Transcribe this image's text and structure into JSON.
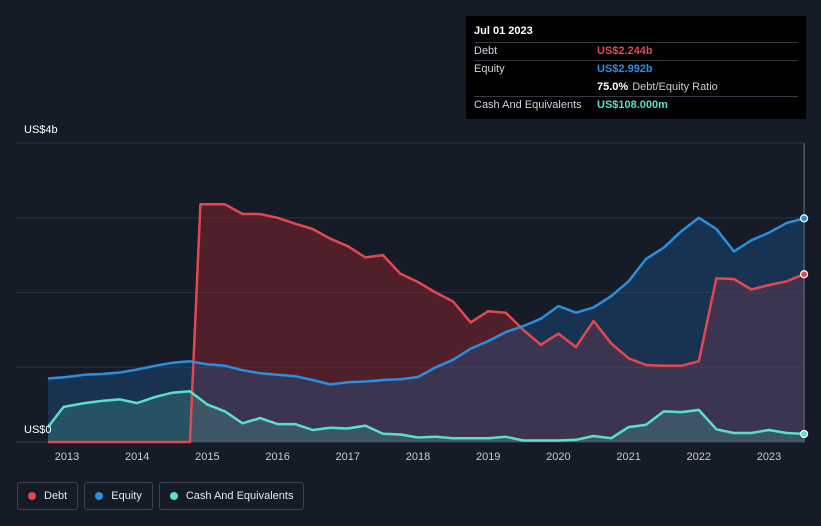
{
  "tooltip": {
    "date": "Jul 01 2023",
    "debt_label": "Debt",
    "debt_value": "US$2.244b",
    "equity_label": "Equity",
    "equity_value": "US$2.992b",
    "ratio_value": "75.0%",
    "ratio_label": "Debt/Equity Ratio",
    "cash_label": "Cash And Equivalents",
    "cash_value": "US$108.000m"
  },
  "legend": [
    {
      "label": "Debt",
      "color": "#e5474f"
    },
    {
      "label": "Equity",
      "color": "#2b8fe0"
    },
    {
      "label": "Cash And Equivalents",
      "color": "#58e0cb"
    }
  ],
  "colors": {
    "debt": "#e5474f",
    "equity": "#2b8fe0",
    "cash": "#58e0cb",
    "background": "#151b27"
  },
  "chart_data": {
    "type": "area",
    "y_top_label": "US$4b",
    "y_bottom_label": "US$0",
    "ylim": [
      0,
      4
    ],
    "y_unit": "US$ billions",
    "xlim": [
      2012.73,
      2023.5
    ],
    "x_ticks": [
      2013,
      2014,
      2015,
      2016,
      2017,
      2018,
      2019,
      2020,
      2021,
      2022,
      2023
    ],
    "series": [
      {
        "name": "Debt",
        "x": [
          2012.73,
          2014.75,
          2014.9,
          2015.25,
          2015.5,
          2015.75,
          2016.0,
          2016.25,
          2016.5,
          2016.75,
          2017.0,
          2017.25,
          2017.5,
          2017.75,
          2018.0,
          2018.25,
          2018.5,
          2018.75,
          2019.0,
          2019.25,
          2019.5,
          2019.75,
          2020.0,
          2020.25,
          2020.5,
          2020.75,
          2021.0,
          2021.25,
          2021.5,
          2021.75,
          2022.0,
          2022.25,
          2022.5,
          2022.75,
          2023.0,
          2023.25,
          2023.5
        ],
        "values": [
          0.0,
          0.0,
          3.18,
          3.18,
          3.05,
          3.05,
          3.0,
          2.92,
          2.85,
          2.72,
          2.62,
          2.47,
          2.5,
          2.25,
          2.14,
          2.0,
          1.88,
          1.6,
          1.75,
          1.73,
          1.5,
          1.3,
          1.45,
          1.27,
          1.62,
          1.32,
          1.12,
          1.03,
          1.02,
          1.02,
          1.08,
          2.19,
          2.18,
          2.04,
          2.1,
          2.15,
          2.244
        ]
      },
      {
        "name": "Equity",
        "x": [
          2012.73,
          2013.0,
          2013.25,
          2013.5,
          2013.75,
          2014.0,
          2014.25,
          2014.5,
          2014.75,
          2015.0,
          2015.25,
          2015.5,
          2015.75,
          2016.0,
          2016.25,
          2016.5,
          2016.75,
          2017.0,
          2017.25,
          2017.5,
          2017.75,
          2018.0,
          2018.25,
          2018.5,
          2018.75,
          2019.0,
          2019.25,
          2019.5,
          2019.75,
          2020.0,
          2020.25,
          2020.5,
          2020.75,
          2021.0,
          2021.25,
          2021.5,
          2021.75,
          2022.0,
          2022.25,
          2022.5,
          2022.75,
          2023.0,
          2023.25,
          2023.5
        ],
        "values": [
          0.85,
          0.87,
          0.9,
          0.91,
          0.93,
          0.97,
          1.02,
          1.06,
          1.08,
          1.04,
          1.02,
          0.96,
          0.92,
          0.9,
          0.88,
          0.83,
          0.77,
          0.8,
          0.81,
          0.83,
          0.84,
          0.87,
          1.0,
          1.1,
          1.25,
          1.35,
          1.47,
          1.55,
          1.65,
          1.82,
          1.73,
          1.8,
          1.95,
          2.15,
          2.45,
          2.6,
          2.82,
          3.0,
          2.85,
          2.55,
          2.7,
          2.8,
          2.93,
          2.992
        ]
      },
      {
        "name": "Cash And Equivalents",
        "x": [
          2012.73,
          2012.95,
          2013.25,
          2013.5,
          2013.75,
          2014.0,
          2014.25,
          2014.5,
          2014.75,
          2015.0,
          2015.25,
          2015.5,
          2015.75,
          2016.0,
          2016.25,
          2016.5,
          2016.75,
          2017.0,
          2017.25,
          2017.5,
          2017.75,
          2018.0,
          2018.25,
          2018.5,
          2018.75,
          2019.0,
          2019.25,
          2019.5,
          2019.75,
          2020.0,
          2020.25,
          2020.5,
          2020.75,
          2021.0,
          2021.25,
          2021.5,
          2021.75,
          2022.0,
          2022.25,
          2022.5,
          2022.75,
          2023.0,
          2023.25,
          2023.5
        ],
        "values": [
          0.2,
          0.47,
          0.52,
          0.55,
          0.57,
          0.52,
          0.6,
          0.66,
          0.68,
          0.5,
          0.41,
          0.25,
          0.32,
          0.24,
          0.24,
          0.16,
          0.19,
          0.18,
          0.22,
          0.11,
          0.1,
          0.06,
          0.07,
          0.05,
          0.05,
          0.05,
          0.07,
          0.02,
          0.02,
          0.02,
          0.03,
          0.08,
          0.05,
          0.2,
          0.23,
          0.41,
          0.4,
          0.43,
          0.17,
          0.12,
          0.12,
          0.16,
          0.12,
          0.108
        ]
      }
    ]
  }
}
